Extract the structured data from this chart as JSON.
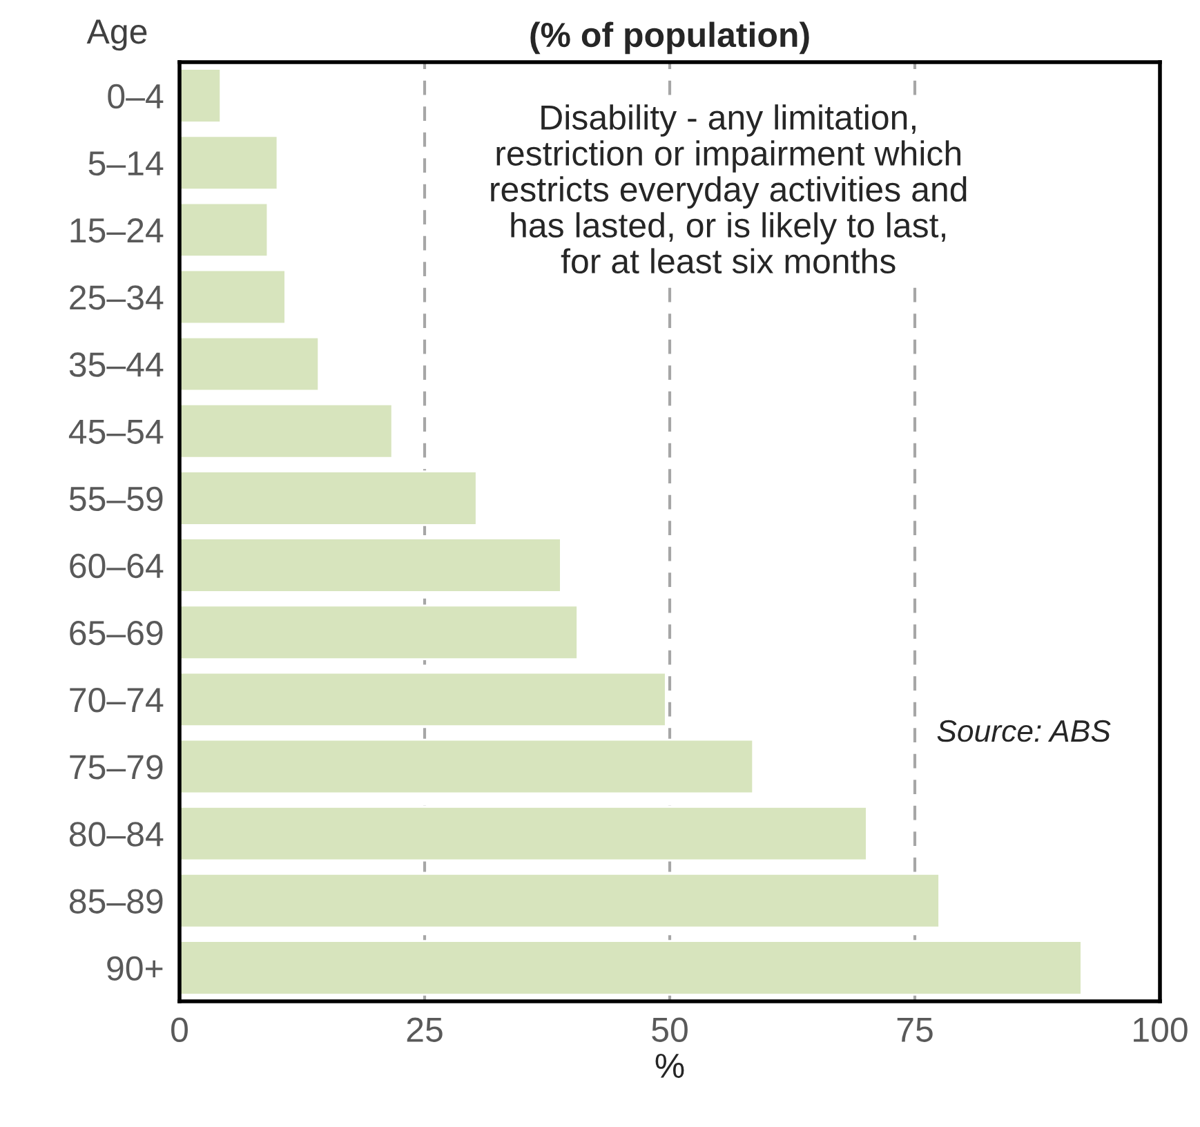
{
  "chart_data": {
    "type": "bar",
    "orientation": "horizontal",
    "title": "(% of population)",
    "xlabel": "%",
    "ylabel": "Age",
    "categories": [
      "0–4",
      "5–14",
      "15–24",
      "25–34",
      "35–44",
      "45–54",
      "55–59",
      "60–64",
      "65–69",
      "70–74",
      "75–79",
      "80–84",
      "85–89",
      "90+"
    ],
    "values": [
      4.2,
      10.0,
      9.0,
      10.8,
      14.2,
      21.7,
      30.3,
      38.9,
      40.6,
      49.6,
      58.5,
      70.1,
      77.5,
      92.0
    ],
    "color": "#d7e4bd",
    "xlim": [
      0,
      100
    ],
    "xticks": [
      0,
      25,
      50,
      75,
      100
    ],
    "grid": "x",
    "legend": false,
    "annotations": [
      "Disability - any limitation,\nrestriction or impairment which\nrestricts everyday activities and\nhas lasted, or is likely to last,\nfor at least six months",
      "Source: ABS"
    ]
  }
}
